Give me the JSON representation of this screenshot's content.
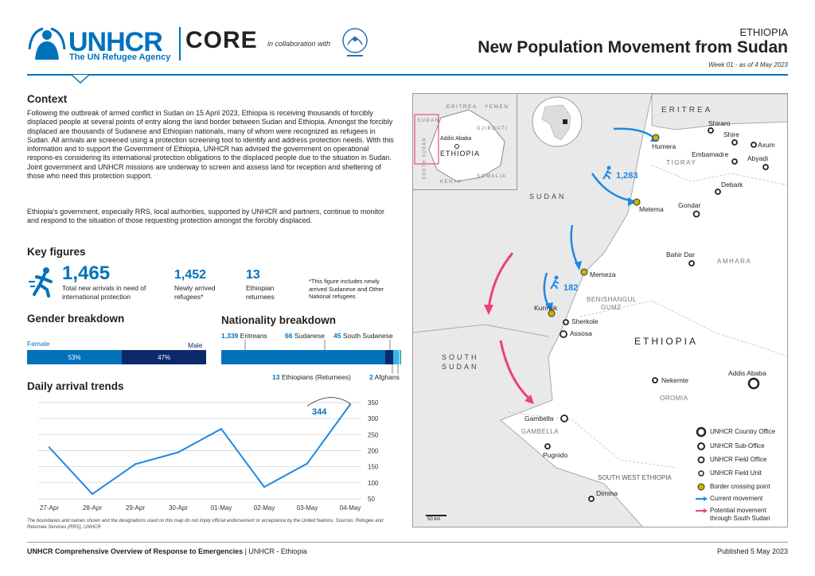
{
  "header": {
    "logo_wordmark": "UNHCR",
    "logo_tagline": "The UN Refugee Agency",
    "core_logo": "CORE",
    "collab_text": "in collaboration with",
    "country": "ETHIOPIA",
    "title": "New Population Movement from Sudan",
    "week": "Week 01 - as of 4 May 2023",
    "accent_color": "#0072bc"
  },
  "context": {
    "heading": "Context",
    "paragraph1": "Following the outbreak of armed conflict in Sudan on 15 April 2023, Ethiopia is receiving thousands of forcibly displaced people at several points of entry along the land border between Sudan and Ethiopia. Amongst the forcibly displaced are thousands of Sudanese and Ethiopian nationals, many of whom were recognized as refugees in Sudan. All arrivals are screened using a protection screening tool to identify and address protection needs. With this information and to support the Government of Ethiopia, UNHCR has advised the government on operational respons-es considering its international protection obligations to the displaced people due to the situation in Sudan. Joint government and UNHCR missions are underway to screen and assess land for reception and sheltering of those who need this protection support.",
    "paragraph2": "Ethiopia's government, especially RRS, local authorities, supported by UNHCR and partners, continue to monitor and respond to the situation of those requesting protection amongst the forcibly displaced."
  },
  "key_figures": {
    "heading": "Key figures",
    "icon": "running-person-icon",
    "total_value": "1,465",
    "total_label": "Total new arrivals in need of international protection",
    "refugees_value": "1,452",
    "refugees_label": "Newly arrived refugees*",
    "returnees_value": "13",
    "returnees_label": "Ethiopian returnees",
    "footnote": "*This figure includes newly arrived Sudanese and Other National refugees"
  },
  "gender": {
    "heading": "Gender breakdown",
    "female_label": "Female",
    "male_label": "Male",
    "female_pct": "53%",
    "male_pct": "47%",
    "female_share": 0.53,
    "female_color": "#0072bc",
    "male_color": "#0b2a6b"
  },
  "nationality": {
    "heading": "Nationality breakdown",
    "items": [
      {
        "value": "1,339",
        "label": "Eritreans",
        "count": 1339,
        "color": "#0072bc"
      },
      {
        "value": "66",
        "label": "Sudanese",
        "count": 66,
        "color": "#0b2a6b"
      },
      {
        "value": "45",
        "label": "South Sudanese",
        "count": 45,
        "color": "#3cb4e5"
      },
      {
        "value": "13",
        "label": "Ethiopians (Returnees)",
        "count": 13,
        "color": "#7ed3f0"
      },
      {
        "value": "2",
        "label": "Afghans",
        "count": 2,
        "color": "#1aa36b"
      }
    ]
  },
  "trend": {
    "heading": "Daily arrival trends",
    "annotation": "344",
    "chart_data": {
      "type": "line",
      "categories": [
        "27-Apr",
        "28-Apr",
        "29-Apr",
        "30-Apr",
        "01-May",
        "02-May",
        "03-May",
        "04-May"
      ],
      "values": [
        210,
        65,
        158,
        195,
        268,
        87,
        160,
        344
      ],
      "yticks": [
        "50",
        "100",
        "150",
        "200",
        "250",
        "300",
        "350"
      ],
      "ylim": [
        50,
        350
      ],
      "grid": true,
      "color": "#1e88e5"
    }
  },
  "map": {
    "countries": {
      "eritrea": "ERITREA",
      "sudan": "SUDAN",
      "south_sudan_1": "SOUTH",
      "south_sudan_2": "SUDAN",
      "ethiopia": "ETHIOPIA"
    },
    "regions": {
      "tigray": "TIGRAY",
      "amhara": "AMHARA",
      "benishangul_1": "BENISHANGUL",
      "benishangul_2": "GUMZ",
      "oromia": "OROMIA",
      "gambella": "GAMBELLA",
      "sw_ethiopia": "SOUTH WEST ETHIOPIA"
    },
    "places": {
      "humera": "Humera",
      "shiraro": "Shiraro",
      "shire": "Shire",
      "axum": "Axum",
      "embamadre": "Embamadre",
      "abyadi": "Abyadi",
      "debark": "Debark",
      "gondar": "Gondar",
      "metema": "Metema",
      "bahir_dar": "Bahir Dar",
      "memeza": "Memeza",
      "kurmuk": "Kurmuk",
      "sherkole": "Sherkole",
      "assosa": "Assosa",
      "nekemte": "Nekemte",
      "addis_ababa": "Addis Ababa",
      "gambella": "Gambella",
      "pugnido": "Pugnido",
      "dimma": "Dimma"
    },
    "flows": {
      "metema_count": "1,283",
      "kurmuk_count": "182"
    },
    "inset": {
      "eritrea": "ERITREA",
      "yemen": "YEMEN",
      "sudan": "SUDAN",
      "djibouti": "DJIBOUTI",
      "addis": "Addis Ababa",
      "ethiopia": "ETHIOPIA",
      "kenya": "KENYA",
      "somalia": "SOMALIA",
      "south_sudan": "SOUTH SUDAN"
    },
    "scale": "50 km",
    "legend": [
      {
        "label": "UNHCR Country Office",
        "icon": "country-office-icon"
      },
      {
        "label": "UNHCR Sub-Office",
        "icon": "sub-office-icon"
      },
      {
        "label": "UNHCR Field Office",
        "icon": "field-office-icon"
      },
      {
        "label": "UNHCR Field Unit",
        "icon": "field-unit-icon"
      },
      {
        "label": "Border crossing point",
        "icon": "border-crossing-icon"
      },
      {
        "label": "Current movement",
        "icon": "current-movement-arrow-icon"
      },
      {
        "label": "Potential movement through South Sudan",
        "icon": "potential-movement-arrow-icon"
      }
    ],
    "land_color": "#ffffff",
    "neighbour_color": "#e9e9e9",
    "current_color": "#1e88e5",
    "potential_color": "#ec407a"
  },
  "disclaimer": "The boundaries and names shown and the designations used on this map do not imply official endorsement or acceptance by the United Nations. Sources: Refugee and Returnee Services (RRS), UNHCR",
  "footer": {
    "left_bold": "UNHCR Comprehensive Overview of Response to Emergencies",
    "left_rest": " | UNHCR - Ethiopia",
    "right": "Published 5 May 2023"
  }
}
